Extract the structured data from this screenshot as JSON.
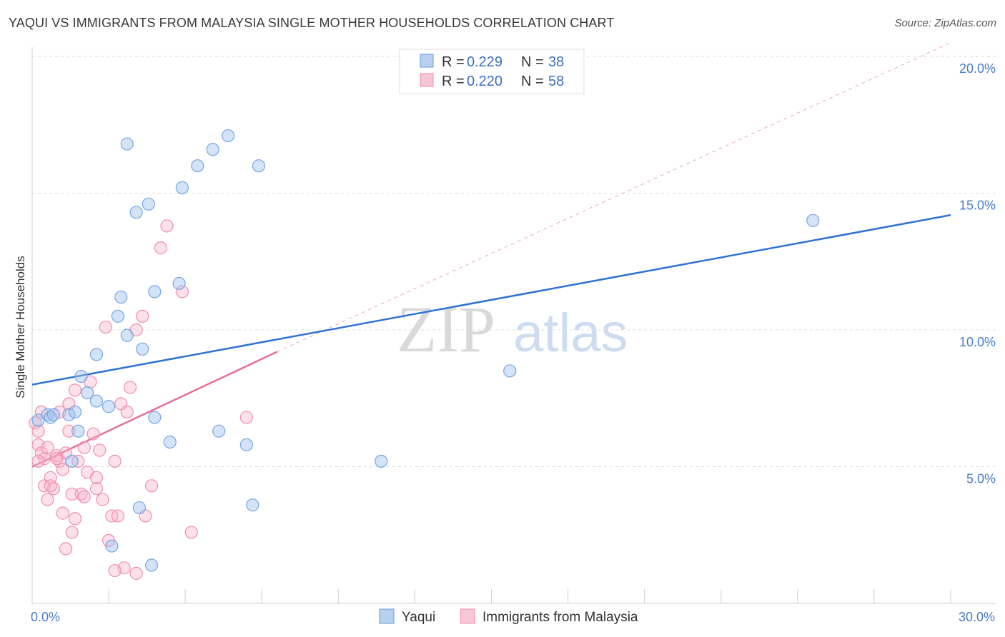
{
  "title": "YAQUI VS IMMIGRANTS FROM MALAYSIA SINGLE MOTHER HOUSEHOLDS CORRELATION CHART",
  "source": "Source: ZipAtlas.com",
  "watermark": {
    "zip": "ZIP",
    "atlas": "atlas"
  },
  "colors": {
    "yaqui": "#4a86d8",
    "malaysia": "#e9739a",
    "tick": "#4a7cc9"
  },
  "chart_data": {
    "type": "scatter",
    "xlabel": "",
    "ylabel": "Single Mother Households",
    "xlim": [
      0,
      30
    ],
    "ylim": [
      0,
      20
    ],
    "x_tick_labels": [
      {
        "value": 0,
        "label": "0.0%"
      },
      {
        "value": 30,
        "label": "30.0%"
      }
    ],
    "y_tick_labels": [
      {
        "value": 5,
        "label": "5.0%"
      },
      {
        "value": 10,
        "label": "10.0%"
      },
      {
        "value": 15,
        "label": "15.0%"
      },
      {
        "value": 20,
        "label": "20.0%"
      }
    ],
    "legend": [
      {
        "series": "Yaqui",
        "r_label": "R =",
        "r": "0.229",
        "n_label": "N =",
        "n": "38"
      },
      {
        "series": "Immigrants from Malaysia",
        "r_label": "R =",
        "r": "0.220",
        "n_label": "N =",
        "n": "58"
      }
    ],
    "series": [
      {
        "name": "Yaqui",
        "color": "#4a86d8",
        "trend": {
          "x": [
            0,
            30
          ],
          "y": [
            8.0,
            14.2
          ]
        },
        "points": [
          [
            0.2,
            6.7
          ],
          [
            0.5,
            6.9
          ],
          [
            0.6,
            6.8
          ],
          [
            0.7,
            6.9
          ],
          [
            1.2,
            6.9
          ],
          [
            1.4,
            7.0
          ],
          [
            1.6,
            8.3
          ],
          [
            1.8,
            7.7
          ],
          [
            2.1,
            9.1
          ],
          [
            1.5,
            6.3
          ],
          [
            1.3,
            5.2
          ],
          [
            2.1,
            7.4
          ],
          [
            2.5,
            7.2
          ],
          [
            2.9,
            11.2
          ],
          [
            2.8,
            10.5
          ],
          [
            3.1,
            9.8
          ],
          [
            3.6,
            9.3
          ],
          [
            3.4,
            14.3
          ],
          [
            3.8,
            14.6
          ],
          [
            3.1,
            16.8
          ],
          [
            4.0,
            11.4
          ],
          [
            4.0,
            6.8
          ],
          [
            4.5,
            5.9
          ],
          [
            4.8,
            11.7
          ],
          [
            4.9,
            15.2
          ],
          [
            5.4,
            16.0
          ],
          [
            5.9,
            16.6
          ],
          [
            6.1,
            6.3
          ],
          [
            6.4,
            17.1
          ],
          [
            7.0,
            5.8
          ],
          [
            7.4,
            16.0
          ],
          [
            7.2,
            3.6
          ],
          [
            3.5,
            3.5
          ],
          [
            2.6,
            2.1
          ],
          [
            3.9,
            1.4
          ],
          [
            11.4,
            5.2
          ],
          [
            15.6,
            8.5
          ],
          [
            25.5,
            14.0
          ]
        ]
      },
      {
        "name": "Immigrants from Malaysia",
        "color": "#e9739a",
        "trend": {
          "x": [
            0,
            8
          ],
          "y": [
            5.0,
            9.2
          ]
        },
        "trend_ext": {
          "x": [
            8,
            30
          ],
          "y": [
            9.2,
            20.5
          ]
        },
        "points": [
          [
            0.1,
            6.6
          ],
          [
            0.2,
            6.3
          ],
          [
            0.2,
            5.8
          ],
          [
            0.3,
            5.5
          ],
          [
            0.4,
            5.3
          ],
          [
            0.5,
            5.7
          ],
          [
            0.4,
            4.3
          ],
          [
            0.6,
            4.6
          ],
          [
            0.5,
            3.8
          ],
          [
            0.7,
            4.2
          ],
          [
            0.8,
            5.4
          ],
          [
            0.9,
            5.2
          ],
          [
            1.0,
            4.9
          ],
          [
            1.1,
            5.5
          ],
          [
            1.2,
            6.3
          ],
          [
            1.3,
            4.0
          ],
          [
            1.0,
            3.3
          ],
          [
            1.2,
            7.3
          ],
          [
            1.4,
            7.8
          ],
          [
            1.5,
            5.2
          ],
          [
            1.6,
            4.0
          ],
          [
            1.7,
            5.7
          ],
          [
            1.8,
            4.8
          ],
          [
            1.9,
            8.1
          ],
          [
            2.0,
            6.2
          ],
          [
            2.1,
            4.2
          ],
          [
            2.2,
            5.6
          ],
          [
            2.4,
            10.1
          ],
          [
            2.6,
            3.2
          ],
          [
            2.7,
            5.2
          ],
          [
            2.3,
            3.8
          ],
          [
            2.9,
            7.3
          ],
          [
            3.1,
            7.0
          ],
          [
            3.2,
            7.9
          ],
          [
            3.4,
            10.0
          ],
          [
            3.6,
            10.5
          ],
          [
            3.9,
            4.3
          ],
          [
            4.2,
            13.0
          ],
          [
            4.4,
            13.8
          ],
          [
            4.9,
            11.4
          ],
          [
            5.2,
            2.6
          ],
          [
            3.0,
            1.3
          ],
          [
            2.7,
            1.2
          ],
          [
            3.4,
            1.1
          ],
          [
            1.3,
            2.6
          ],
          [
            2.5,
            2.3
          ],
          [
            2.8,
            3.2
          ],
          [
            3.7,
            3.2
          ],
          [
            0.3,
            7.0
          ],
          [
            0.9,
            7.0
          ],
          [
            1.4,
            3.1
          ],
          [
            0.6,
            4.3
          ],
          [
            2.1,
            4.6
          ],
          [
            1.7,
            3.9
          ],
          [
            0.8,
            5.3
          ],
          [
            1.1,
            2.0
          ],
          [
            7.0,
            6.8
          ],
          [
            0.2,
            5.2
          ]
        ]
      }
    ]
  }
}
